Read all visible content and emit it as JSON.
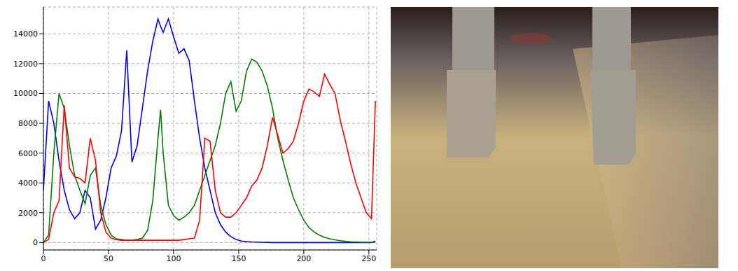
{
  "chart_data": {
    "type": "line",
    "x": [
      0,
      4,
      8,
      12,
      16,
      20,
      24,
      28,
      32,
      36,
      40,
      44,
      48,
      52,
      56,
      60,
      64,
      68,
      72,
      76,
      80,
      84,
      88,
      90,
      92,
      96,
      100,
      104,
      108,
      112,
      116,
      120,
      124,
      128,
      132,
      136,
      140,
      144,
      148,
      152,
      156,
      160,
      164,
      168,
      172,
      176,
      180,
      184,
      188,
      192,
      196,
      200,
      204,
      208,
      212,
      216,
      220,
      224,
      228,
      232,
      236,
      240,
      244,
      248,
      252,
      255
    ],
    "series": [
      {
        "color": "#0000ff",
        "values": [
          3500,
          9500,
          8000,
          5500,
          3500,
          2200,
          1600,
          2000,
          3500,
          3000,
          900,
          1500,
          3000,
          5000,
          5800,
          7500,
          12900,
          5400,
          6500,
          9000,
          11500,
          13500,
          15000,
          14500,
          14100,
          15000,
          13800,
          12700,
          13000,
          12200,
          9500,
          7000,
          5000,
          3500,
          2000,
          1200,
          700,
          400,
          200,
          100,
          60,
          40,
          30,
          20,
          10,
          0,
          0,
          0,
          0,
          0,
          0,
          0,
          0,
          0,
          0,
          0,
          0,
          0,
          0,
          0,
          0,
          0,
          0,
          0,
          0,
          100
        ]
      },
      {
        "color": "#008000",
        "values": [
          0,
          500,
          6000,
          10000,
          9000,
          6500,
          4500,
          3500,
          2600,
          4500,
          5000,
          2500,
          1200,
          500,
          250,
          200,
          150,
          150,
          200,
          300,
          800,
          2800,
          7000,
          8900,
          6000,
          2500,
          1800,
          1500,
          1700,
          2000,
          2500,
          3500,
          4500,
          5500,
          6500,
          8000,
          10000,
          10800,
          8800,
          9500,
          11500,
          12300,
          12100,
          11500,
          10500,
          9000,
          7000,
          5500,
          4200,
          3000,
          2200,
          1500,
          1000,
          700,
          500,
          350,
          250,
          180,
          120,
          80,
          50,
          40,
          30,
          20,
          20,
          20
        ]
      },
      {
        "color": "#ff0000",
        "values": [
          0,
          200,
          2000,
          2800,
          9200,
          5000,
          4400,
          4300,
          4000,
          7000,
          5500,
          2000,
          700,
          300,
          200,
          150,
          150,
          150,
          150,
          150,
          150,
          150,
          150,
          150,
          150,
          150,
          150,
          150,
          200,
          250,
          300,
          1500,
          7000,
          6800,
          3500,
          2000,
          1700,
          1700,
          2000,
          2500,
          3000,
          3800,
          4200,
          5000,
          6500,
          8400,
          7200,
          6000,
          6300,
          6800,
          8000,
          9500,
          10300,
          10100,
          9800,
          11300,
          10600,
          10000,
          8200,
          6800,
          5300,
          4000,
          3000,
          2000,
          1600,
          9500
        ]
      }
    ],
    "xlim": [
      0,
      256
    ],
    "xticks": [
      0,
      50,
      100,
      150,
      200,
      250
    ],
    "ylim": [
      -500,
      15800
    ],
    "yticks": [
      0,
      2000,
      4000,
      6000,
      8000,
      10000,
      12000,
      14000
    ],
    "grid": true
  }
}
